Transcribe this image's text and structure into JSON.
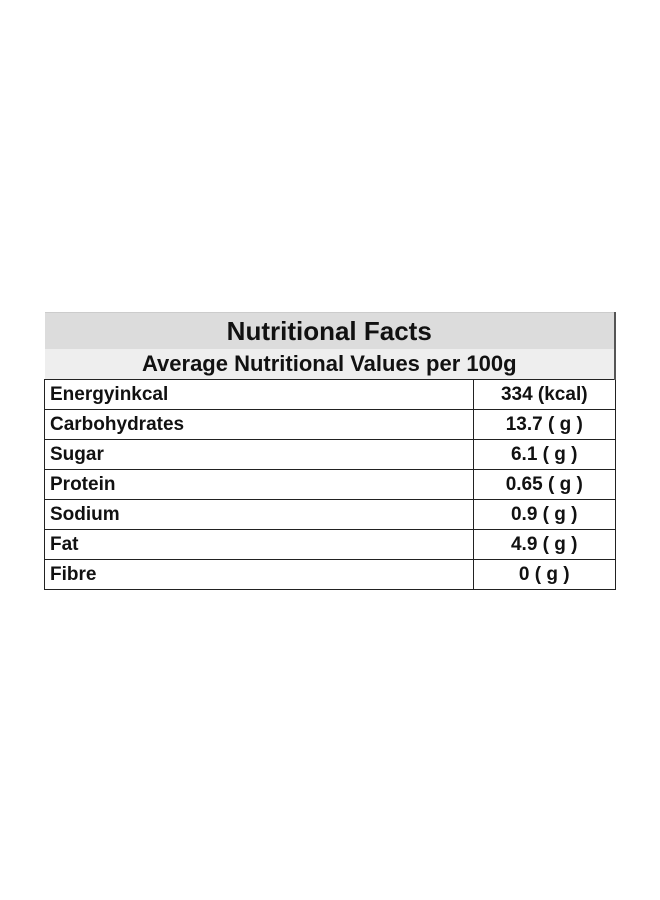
{
  "table": {
    "title": "Nutritional Facts",
    "subtitle": "Average Nutritional Values per 100g",
    "rows": [
      [
        "Energyinkcal",
        "334 (kcal)"
      ],
      [
        "Carbohydrates",
        "13.7 ( g )"
      ],
      [
        "Sugar",
        "6.1 ( g )"
      ],
      [
        "Protein",
        "0.65 ( g )"
      ],
      [
        "Sodium",
        "0.9 ( g )"
      ],
      [
        "Fat",
        "4.9 ( g )"
      ],
      [
        "Fibre",
        "0 ( g )"
      ]
    ]
  }
}
